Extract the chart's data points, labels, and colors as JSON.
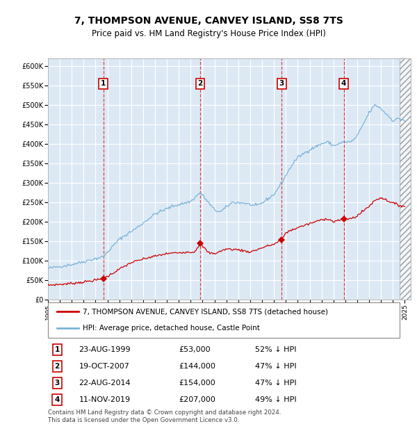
{
  "title": "7, THOMPSON AVENUE, CANVEY ISLAND, SS8 7TS",
  "subtitle": "Price paid vs. HM Land Registry's House Price Index (HPI)",
  "title_fontsize": 10,
  "subtitle_fontsize": 8.5,
  "plot_bg_color": "#dce9f5",
  "grid_color": "#ffffff",
  "hpi_color": "#7ab3d8",
  "price_color": "#cc0000",
  "marker_color": "#cc0000",
  "dashed_color": "#dd3333",
  "xlim_left": 1995.0,
  "xlim_right": 2025.5,
  "ylim_bottom": 0,
  "ylim_top": 620000,
  "yticks": [
    0,
    50000,
    100000,
    150000,
    200000,
    250000,
    300000,
    350000,
    400000,
    450000,
    500000,
    550000,
    600000
  ],
  "ytick_labels": [
    "£0",
    "£50K",
    "£100K",
    "£150K",
    "£200K",
    "£250K",
    "£300K",
    "£350K",
    "£400K",
    "£450K",
    "£500K",
    "£550K",
    "£600K"
  ],
  "xticks": [
    1995,
    1996,
    1997,
    1998,
    1999,
    2000,
    2001,
    2002,
    2003,
    2004,
    2005,
    2006,
    2007,
    2008,
    2009,
    2010,
    2011,
    2012,
    2013,
    2014,
    2015,
    2016,
    2017,
    2018,
    2019,
    2020,
    2021,
    2022,
    2023,
    2024,
    2025
  ],
  "sale_dates": [
    1999.65,
    2007.8,
    2014.65,
    2019.87
  ],
  "sale_prices": [
    53000,
    144000,
    154000,
    207000
  ],
  "sale_labels": [
    "1",
    "2",
    "3",
    "4"
  ],
  "legend_line1": "7, THOMPSON AVENUE, CANVEY ISLAND, SS8 7TS (detached house)",
  "legend_line2": "HPI: Average price, detached house, Castle Point",
  "table_entries": [
    {
      "num": "1",
      "date": "23-AUG-1999",
      "price": "£53,000",
      "hpi": "52% ↓ HPI"
    },
    {
      "num": "2",
      "date": "19-OCT-2007",
      "price": "£144,000",
      "hpi": "47% ↓ HPI"
    },
    {
      "num": "3",
      "date": "22-AUG-2014",
      "price": "£154,000",
      "hpi": "47% ↓ HPI"
    },
    {
      "num": "4",
      "date": "11-NOV-2019",
      "price": "£207,000",
      "hpi": "49% ↓ HPI"
    }
  ],
  "footer": "Contains HM Land Registry data © Crown copyright and database right 2024.\nThis data is licensed under the Open Government Licence v3.0.",
  "hpi_waypoints_x": [
    1995.0,
    1997.0,
    1999.65,
    2001.0,
    2002.5,
    2004.0,
    2005.5,
    2007.0,
    2007.8,
    2009.0,
    2009.5,
    2010.5,
    2011.5,
    2012.5,
    2013.0,
    2014.0,
    2014.65,
    2015.5,
    2016.0,
    2017.0,
    2018.0,
    2018.5,
    2019.0,
    2019.87,
    2020.5,
    2021.0,
    2021.5,
    2022.0,
    2022.5,
    2022.8,
    2023.0,
    2023.5,
    2024.0,
    2024.5,
    2025.0
  ],
  "hpi_waypoints_y": [
    80000,
    90000,
    110000,
    155000,
    185000,
    220000,
    240000,
    252000,
    275000,
    230000,
    225000,
    250000,
    248000,
    240000,
    248000,
    270000,
    300000,
    345000,
    365000,
    385000,
    400000,
    405000,
    395000,
    405000,
    405000,
    420000,
    450000,
    480000,
    500000,
    495000,
    490000,
    475000,
    460000,
    465000,
    460000
  ],
  "price_waypoints_x": [
    1995.0,
    1996.5,
    1998.0,
    1999.0,
    1999.65,
    2001.0,
    2002.0,
    2003.5,
    2005.0,
    2006.5,
    2007.3,
    2007.8,
    2008.5,
    2009.0,
    2010.0,
    2011.0,
    2012.0,
    2013.0,
    2013.5,
    2014.0,
    2014.65,
    2015.0,
    2016.0,
    2017.0,
    2017.5,
    2018.0,
    2018.5,
    2019.0,
    2019.87,
    2020.5,
    2021.0,
    2022.0,
    2022.5,
    2023.0,
    2023.5,
    2024.0,
    2024.5,
    2025.0
  ],
  "price_waypoints_y": [
    37000,
    40000,
    45000,
    50000,
    53000,
    78000,
    95000,
    108000,
    118000,
    122000,
    122000,
    144000,
    120000,
    118000,
    130000,
    128000,
    122000,
    133000,
    138000,
    142000,
    154000,
    172000,
    185000,
    195000,
    200000,
    205000,
    208000,
    200000,
    207000,
    208000,
    215000,
    240000,
    255000,
    262000,
    255000,
    248000,
    242000,
    240000
  ]
}
